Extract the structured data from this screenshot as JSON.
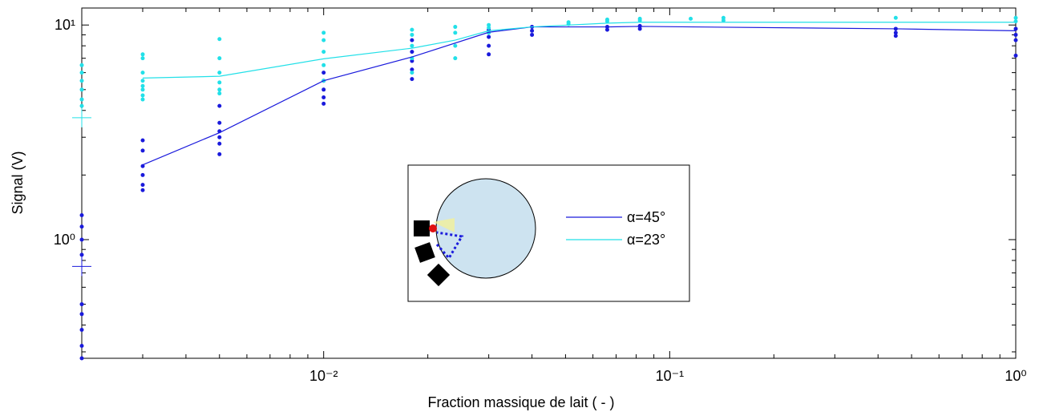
{
  "chart_data": {
    "type": "line",
    "xlabel": "Fraction massique de lait ( - )",
    "ylabel": "Signal (V)",
    "xscale": "log",
    "yscale": "log",
    "xlim": [
      0.002,
      1
    ],
    "ylim": [
      0.28,
      12
    ],
    "xticks": [
      {
        "value": 0.01,
        "label": "10⁻²"
      },
      {
        "value": 0.1,
        "label": "10⁻¹"
      },
      {
        "value": 1,
        "label": "10⁰"
      }
    ],
    "yticks": [
      {
        "value": 1,
        "label": "10⁰"
      },
      {
        "value": 10,
        "label": "10¹"
      }
    ],
    "xminorticks": [
      0.003,
      0.004,
      0.005,
      0.006,
      0.007,
      0.008,
      0.009,
      0.02,
      0.03,
      0.04,
      0.05,
      0.06,
      0.07,
      0.08,
      0.09,
      0.2,
      0.3,
      0.4,
      0.5,
      0.6,
      0.7,
      0.8,
      0.9
    ],
    "yminorticks": [
      0.3,
      0.4,
      0.5,
      0.6,
      0.7,
      0.8,
      0.9,
      2,
      3,
      4,
      5,
      6,
      7,
      8,
      9
    ],
    "series": [
      {
        "name": "α=45°",
        "color": "#1a1adc",
        "x": [
          0.003,
          0.005,
          0.01,
          0.018,
          0.03,
          0.04,
          0.066,
          0.082,
          0.45,
          1
        ],
        "values": [
          2.23,
          3.15,
          5.5,
          7.1,
          9.25,
          9.8,
          9.8,
          9.85,
          9.6,
          9.4
        ]
      },
      {
        "name": "α=23°",
        "color": "#22e0e8",
        "x": [
          0.003,
          0.005,
          0.01,
          0.018,
          0.024,
          0.03,
          0.04,
          0.066,
          0.082,
          0.143,
          0.45,
          1
        ],
        "values": [
          5.66,
          5.77,
          6.96,
          7.8,
          8.5,
          9.4,
          9.8,
          10.2,
          10.3,
          10.3,
          10.3,
          10.3
        ]
      }
    ],
    "points": [
      {
        "color": "#1a1adc",
        "x": [
          0.002,
          0.002,
          0.002,
          0.002,
          0.002,
          0.002,
          0.002,
          0.002,
          0.002,
          0.003,
          0.003,
          0.003,
          0.003,
          0.003,
          0.003,
          0.005,
          0.005,
          0.005,
          0.005,
          0.005,
          0.005,
          0.01,
          0.01,
          0.01,
          0.01,
          0.01,
          0.018,
          0.018,
          0.018,
          0.018,
          0.018,
          0.03,
          0.03,
          0.03,
          0.03,
          0.04,
          0.04,
          0.04,
          0.066,
          0.066,
          0.082,
          0.082,
          0.45,
          0.45,
          0.45,
          1,
          1,
          1,
          1
        ],
        "y": [
          1.3,
          1.15,
          1.0,
          0.85,
          0.5,
          0.45,
          0.38,
          0.32,
          0.28,
          2.9,
          2.6,
          2.2,
          2.0,
          1.8,
          1.7,
          4.2,
          3.5,
          3.2,
          3.0,
          2.8,
          2.5,
          6.0,
          5.5,
          5.0,
          4.6,
          4.3,
          8.5,
          7.5,
          6.8,
          6.2,
          5.6,
          9.5,
          8.8,
          8.0,
          7.3,
          9.8,
          9.4,
          9.0,
          9.8,
          9.5,
          9.9,
          9.6,
          9.6,
          9.2,
          8.9,
          9.6,
          9.0,
          8.5,
          7.2
        ]
      },
      {
        "color": "#22e0e8",
        "x": [
          0.002,
          0.002,
          0.002,
          0.002,
          0.002,
          0.002,
          0.003,
          0.003,
          0.003,
          0.003,
          0.003,
          0.003,
          0.003,
          0.003,
          0.005,
          0.005,
          0.005,
          0.005,
          0.005,
          0.005,
          0.01,
          0.01,
          0.01,
          0.01,
          0.01,
          0.018,
          0.018,
          0.018,
          0.018,
          0.018,
          0.024,
          0.024,
          0.024,
          0.024,
          0.03,
          0.03,
          0.03,
          0.051,
          0.051,
          0.066,
          0.066,
          0.082,
          0.082,
          0.115,
          0.143,
          0.143,
          0.45,
          1,
          1
        ],
        "y": [
          6.5,
          6.0,
          5.5,
          5.0,
          4.5,
          4.2,
          7.3,
          7.0,
          6.0,
          5.5,
          5.2,
          5.0,
          4.7,
          4.5,
          8.6,
          7.0,
          6.0,
          5.4,
          5.0,
          4.8,
          9.2,
          8.5,
          7.5,
          6.5,
          5.5,
          9.5,
          9.0,
          8.0,
          7.0,
          6.0,
          9.8,
          9.2,
          8.0,
          7.0,
          10,
          9.7,
          9.2,
          10.3,
          10.1,
          10.6,
          10.4,
          10.7,
          10.5,
          10.7,
          10.8,
          10.5,
          10.8,
          10.8,
          10.4
        ]
      }
    ],
    "markers": [
      {
        "color": "#22e0e8",
        "x": 0.002,
        "y": 3.7
      },
      {
        "color": "#1a1adc",
        "x": 0.002,
        "y": 0.75
      }
    ]
  }
}
